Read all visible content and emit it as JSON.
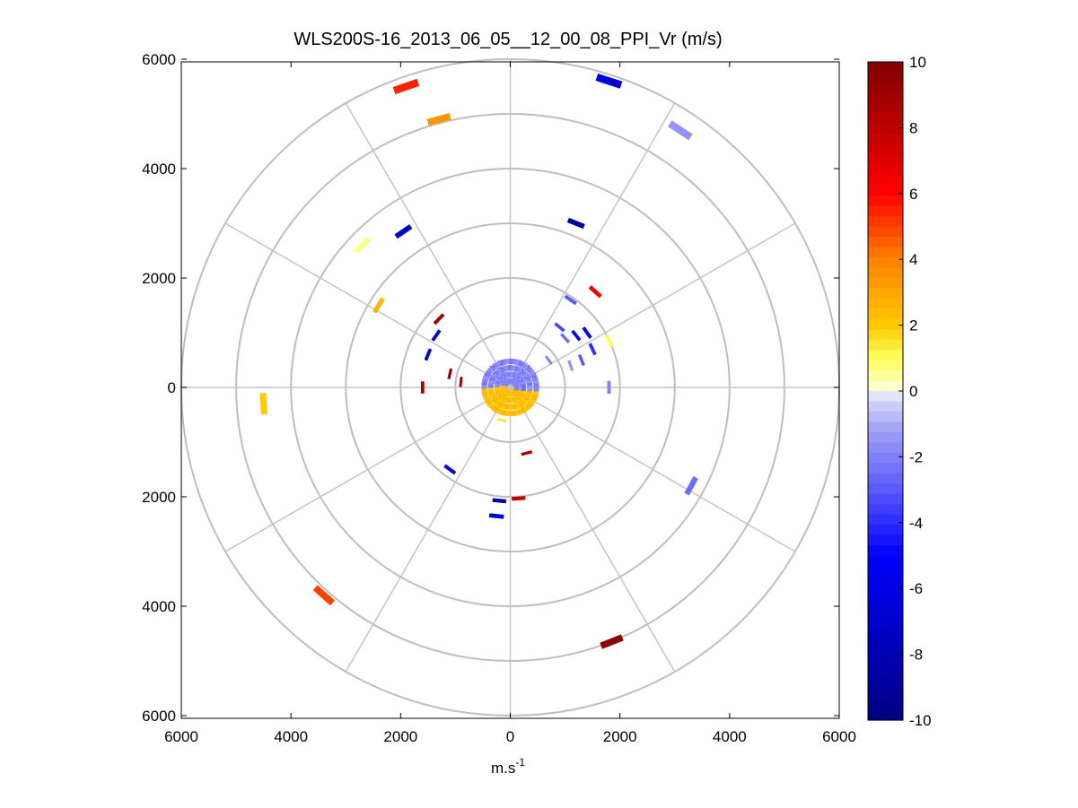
{
  "chart_data": {
    "type": "polar-ppi-heatmap",
    "title": "WLS200S-16_2013_06_05__12_00_08_PPI_Vr (m/s)",
    "xlabel": "m.s",
    "xlabel_superscript": "-1",
    "ylabel": "",
    "xlim": [
      -6000,
      6000
    ],
    "ylim": [
      -6000,
      6000
    ],
    "x_ticks": [
      {
        "value": -6000,
        "label": "6000"
      },
      {
        "value": -4000,
        "label": "4000"
      },
      {
        "value": -2000,
        "label": "2000"
      },
      {
        "value": 0,
        "label": "0"
      },
      {
        "value": 2000,
        "label": "2000"
      },
      {
        "value": 4000,
        "label": "4000"
      },
      {
        "value": 6000,
        "label": "6000"
      }
    ],
    "y_ticks": [
      {
        "value": 6000,
        "label": "6000"
      },
      {
        "value": 4000,
        "label": "4000"
      },
      {
        "value": 2000,
        "label": "2000"
      },
      {
        "value": 0,
        "label": "0"
      },
      {
        "value": -2000,
        "label": "2000"
      },
      {
        "value": -4000,
        "label": "4000"
      },
      {
        "value": -6000,
        "label": "6000"
      }
    ],
    "range_rings": [
      1000,
      2000,
      3000,
      4000,
      5000,
      6000
    ],
    "spoke_angles_deg": [
      0,
      30,
      60,
      90,
      120,
      150,
      180,
      210,
      240,
      270,
      300,
      330
    ],
    "grid": true,
    "colorbar": {
      "min": -10,
      "max": 10,
      "ticks": [
        {
          "value": 10,
          "label": "10"
        },
        {
          "value": 8,
          "label": "8"
        },
        {
          "value": 6,
          "label": "6"
        },
        {
          "value": 4,
          "label": "4"
        },
        {
          "value": 2,
          "label": "2"
        },
        {
          "value": 0,
          "label": "0"
        },
        {
          "value": -2,
          "label": "-2"
        },
        {
          "value": -4,
          "label": "-4"
        },
        {
          "value": -6,
          "label": "-6"
        },
        {
          "value": -8,
          "label": "-8"
        },
        {
          "value": -10,
          "label": "-10"
        }
      ]
    },
    "cells": [
      {
        "x": -1900,
        "y": 5500,
        "v": 5.5
      },
      {
        "x": -1300,
        "y": 4900,
        "v": 3.5
      },
      {
        "x": 1800,
        "y": 5600,
        "v": -6.5
      },
      {
        "x": 3100,
        "y": 4700,
        "v": -1.5
      },
      {
        "x": -2700,
        "y": 2600,
        "v": 0.7
      },
      {
        "x": -1950,
        "y": 2850,
        "v": -7.5
      },
      {
        "x": 1200,
        "y": 3000,
        "v": -9.0
      },
      {
        "x": 1550,
        "y": 1750,
        "v": 6.5
      },
      {
        "x": -2400,
        "y": 1500,
        "v": 2.5
      },
      {
        "x": -4500,
        "y": -300,
        "v": 2.0
      },
      {
        "x": 3300,
        "y": -1800,
        "v": -2.5
      },
      {
        "x": -3400,
        "y": -3800,
        "v": 5.0
      },
      {
        "x": 1850,
        "y": -4650,
        "v": 9.5
      },
      {
        "x": -250,
        "y": -2350,
        "v": -7.0
      },
      {
        "x": -200,
        "y": -2070,
        "v": -8.5
      },
      {
        "x": 150,
        "y": -2030,
        "v": 8.0
      },
      {
        "x": -1300,
        "y": 1250,
        "v": 9.0
      },
      {
        "x": -1600,
        "y": 0,
        "v": 9.0
      },
      {
        "x": -1100,
        "y": 250,
        "v": 9.0
      },
      {
        "x": -900,
        "y": 100,
        "v": 9.0
      },
      {
        "x": -1500,
        "y": 600,
        "v": -6.0
      },
      {
        "x": -1350,
        "y": 950,
        "v": -6.5
      },
      {
        "x": -1100,
        "y": -1500,
        "v": -6.5
      },
      {
        "x": 300,
        "y": -1200,
        "v": 8.5
      },
      {
        "x": 1100,
        "y": 1600,
        "v": -3.0
      },
      {
        "x": 900,
        "y": 1100,
        "v": -3.5
      },
      {
        "x": 1200,
        "y": 950,
        "v": -6.0
      },
      {
        "x": 1000,
        "y": 900,
        "v": -2.5
      },
      {
        "x": 1400,
        "y": 1000,
        "v": -5.0
      },
      {
        "x": 1500,
        "y": 700,
        "v": -4.0
      },
      {
        "x": 1800,
        "y": 850,
        "v": 1.0
      },
      {
        "x": 1100,
        "y": 400,
        "v": -1.5
      },
      {
        "x": 1300,
        "y": 500,
        "v": -3.0
      },
      {
        "x": 1800,
        "y": 0,
        "v": -2.0
      },
      {
        "x": 700,
        "y": 500,
        "v": -2.0
      },
      {
        "x": -150,
        "y": -600,
        "v": 1.5
      }
    ],
    "core_echo": {
      "radius": 500,
      "north_value": -1.5,
      "south_value": 2.0
    }
  }
}
